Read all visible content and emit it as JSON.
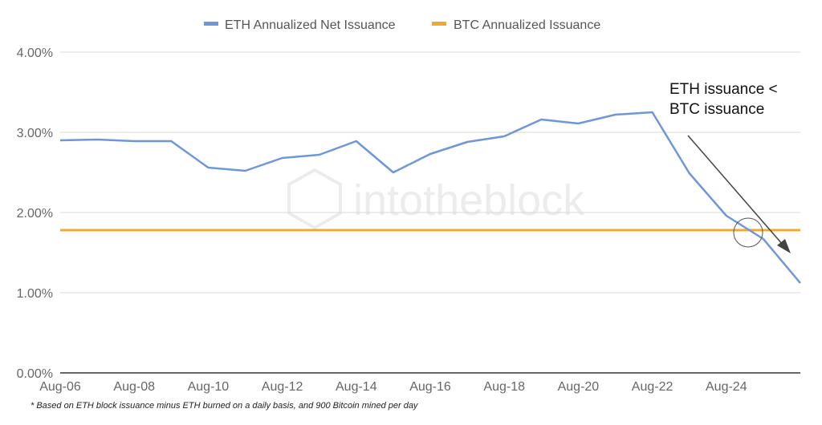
{
  "chart_data": {
    "type": "line",
    "title": "",
    "xlabel": "",
    "ylabel": "",
    "x": [
      "Aug-06",
      "Aug-07",
      "Aug-08",
      "Aug-09",
      "Aug-10",
      "Aug-11",
      "Aug-12",
      "Aug-13",
      "Aug-14",
      "Aug-15",
      "Aug-16",
      "Aug-17",
      "Aug-18",
      "Aug-19",
      "Aug-20",
      "Aug-21",
      "Aug-22",
      "Aug-23",
      "Aug-24",
      "Aug-25",
      "Aug-26"
    ],
    "x_tick_labels": [
      "Aug-06",
      "Aug-08",
      "Aug-10",
      "Aug-12",
      "Aug-14",
      "Aug-16",
      "Aug-18",
      "Aug-20",
      "Aug-22",
      "Aug-24"
    ],
    "y_tick_labels": [
      "0.00%",
      "1.00%",
      "2.00%",
      "3.00%",
      "4.00%"
    ],
    "ylim": [
      0,
      4
    ],
    "y_unit": "%",
    "grid": true,
    "legend_position": "top",
    "series": [
      {
        "name": "ETH Annualized Net Issuance",
        "color": "#6f96d8",
        "values": [
          2.9,
          2.91,
          2.89,
          2.89,
          2.56,
          2.52,
          2.68,
          2.72,
          2.89,
          2.5,
          2.73,
          2.88,
          2.95,
          3.16,
          3.11,
          3.22,
          3.25,
          2.49,
          1.96,
          1.67,
          1.12
        ]
      },
      {
        "name": "BTC Annualized Issuance",
        "color": "#f0a92e",
        "values": [
          1.78,
          1.78,
          1.78,
          1.78,
          1.78,
          1.78,
          1.78,
          1.78,
          1.78,
          1.78,
          1.78,
          1.78,
          1.78,
          1.78,
          1.78,
          1.78,
          1.78,
          1.78,
          1.78,
          1.78,
          1.78
        ]
      }
    ],
    "annotation": {
      "line1": "ETH issuance <",
      "line2": "BTC issuance"
    },
    "watermark": "intotheblock",
    "footnote": "* Based on ETH block issuance minus ETH burned on a daily basis, and 900 Bitcoin mined per day"
  }
}
